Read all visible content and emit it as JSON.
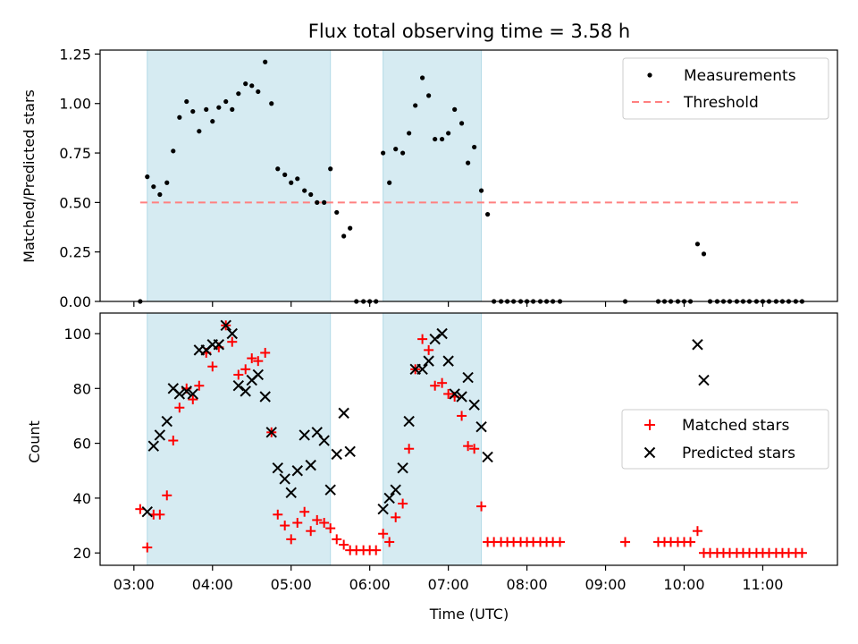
{
  "figure": {
    "title": "Flux total observing time = 3.58 h"
  },
  "chart_data": [
    {
      "type": "scatter",
      "panel": "top",
      "ylabel": "Matched/Predicted stars",
      "xlabel": "",
      "x_range_hours": [
        2.57,
        11.95
      ],
      "ylim": [
        0,
        1.27
      ],
      "yticks": [
        0,
        0.25,
        0.5,
        0.75,
        1.0,
        1.25
      ],
      "ytick_labels": [
        "0.00",
        "0.25",
        "0.50",
        "0.75",
        "1.00",
        "1.25"
      ],
      "xticks": [
        3,
        4,
        5,
        6,
        7,
        8,
        9,
        10,
        11
      ],
      "shaded_intervals_hours": [
        [
          3.17,
          5.5
        ],
        [
          6.17,
          7.42
        ]
      ],
      "legend_position": "upper right",
      "legend": [
        "Measurements",
        "Threshold"
      ],
      "threshold": {
        "name": "Threshold",
        "value": 0.5,
        "x_start": 3.08,
        "x_end": 11.5,
        "color": "#ff8080",
        "style": "dashed"
      },
      "series": [
        {
          "name": "Measurements",
          "marker": "dot",
          "color": "#000000",
          "points": [
            [
              3.08,
              0.0
            ],
            [
              3.17,
              0.63
            ],
            [
              3.25,
              0.58
            ],
            [
              3.33,
              0.54
            ],
            [
              3.42,
              0.6
            ],
            [
              3.5,
              0.76
            ],
            [
              3.58,
              0.93
            ],
            [
              3.67,
              1.01
            ],
            [
              3.75,
              0.96
            ],
            [
              3.83,
              0.86
            ],
            [
              3.92,
              0.97
            ],
            [
              4.0,
              0.91
            ],
            [
              4.08,
              0.98
            ],
            [
              4.17,
              1.01
            ],
            [
              4.25,
              0.97
            ],
            [
              4.33,
              1.05
            ],
            [
              4.42,
              1.1
            ],
            [
              4.5,
              1.09
            ],
            [
              4.58,
              1.06
            ],
            [
              4.67,
              1.21
            ],
            [
              4.75,
              1.0
            ],
            [
              4.83,
              0.67
            ],
            [
              4.92,
              0.64
            ],
            [
              5.0,
              0.6
            ],
            [
              5.08,
              0.62
            ],
            [
              5.17,
              0.56
            ],
            [
              5.25,
              0.54
            ],
            [
              5.33,
              0.5
            ],
            [
              5.42,
              0.5
            ],
            [
              5.5,
              0.67
            ],
            [
              5.58,
              0.45
            ],
            [
              5.67,
              0.33
            ],
            [
              5.75,
              0.37
            ],
            [
              5.83,
              0.0
            ],
            [
              5.92,
              0.0
            ],
            [
              6.0,
              0.0
            ],
            [
              6.08,
              0.0
            ],
            [
              6.17,
              0.75
            ],
            [
              6.25,
              0.6
            ],
            [
              6.33,
              0.77
            ],
            [
              6.42,
              0.75
            ],
            [
              6.5,
              0.85
            ],
            [
              6.58,
              0.99
            ],
            [
              6.67,
              1.13
            ],
            [
              6.75,
              1.04
            ],
            [
              6.83,
              0.82
            ],
            [
              6.92,
              0.82
            ],
            [
              7.0,
              0.85
            ],
            [
              7.08,
              0.97
            ],
            [
              7.17,
              0.9
            ],
            [
              7.25,
              0.7
            ],
            [
              7.33,
              0.78
            ],
            [
              7.42,
              0.56
            ],
            [
              7.5,
              0.44
            ],
            [
              7.58,
              0.0
            ],
            [
              7.67,
              0.0
            ],
            [
              7.75,
              0.0
            ],
            [
              7.83,
              0.0
            ],
            [
              7.92,
              0.0
            ],
            [
              8.0,
              0.0
            ],
            [
              8.08,
              0.0
            ],
            [
              8.17,
              0.0
            ],
            [
              8.25,
              0.0
            ],
            [
              8.33,
              0.0
            ],
            [
              8.42,
              0.0
            ],
            [
              9.25,
              0.0
            ],
            [
              9.67,
              0.0
            ],
            [
              9.75,
              0.0
            ],
            [
              9.83,
              0.0
            ],
            [
              9.92,
              0.0
            ],
            [
              10.0,
              0.0
            ],
            [
              10.08,
              0.0
            ],
            [
              10.17,
              0.29
            ],
            [
              10.25,
              0.24
            ],
            [
              10.33,
              0.0
            ],
            [
              10.42,
              0.0
            ],
            [
              10.5,
              0.0
            ],
            [
              10.58,
              0.0
            ],
            [
              10.67,
              0.0
            ],
            [
              10.75,
              0.0
            ],
            [
              10.83,
              0.0
            ],
            [
              10.92,
              0.0
            ],
            [
              11.0,
              0.0
            ],
            [
              11.08,
              0.0
            ],
            [
              11.17,
              0.0
            ],
            [
              11.25,
              0.0
            ],
            [
              11.33,
              0.0
            ],
            [
              11.42,
              0.0
            ],
            [
              11.5,
              0.0
            ]
          ]
        }
      ]
    },
    {
      "type": "scatter",
      "panel": "bottom",
      "ylabel": "Count",
      "xlabel": "Time (UTC)",
      "x_range_hours": [
        2.57,
        11.95
      ],
      "ylim": [
        15.5,
        107.5
      ],
      "yticks": [
        20,
        40,
        60,
        80,
        100
      ],
      "ytick_labels": [
        "20",
        "40",
        "60",
        "80",
        "100"
      ],
      "xticks": [
        3,
        4,
        5,
        6,
        7,
        8,
        9,
        10,
        11
      ],
      "xtick_labels": [
        "03:00",
        "04:00",
        "05:00",
        "06:00",
        "07:00",
        "08:00",
        "09:00",
        "10:00",
        "11:00"
      ],
      "shaded_intervals_hours": [
        [
          3.17,
          5.5
        ],
        [
          6.17,
          7.42
        ]
      ],
      "legend_position": "center right",
      "legend": [
        "Matched stars",
        "Predicted stars"
      ],
      "series": [
        {
          "name": "Matched stars",
          "marker": "plus",
          "color": "#ff0000",
          "points": [
            [
              3.08,
              36
            ],
            [
              3.17,
              22
            ],
            [
              3.25,
              34
            ],
            [
              3.33,
              34
            ],
            [
              3.42,
              41
            ],
            [
              3.5,
              61
            ],
            [
              3.58,
              73
            ],
            [
              3.67,
              80
            ],
            [
              3.75,
              76
            ],
            [
              3.83,
              81
            ],
            [
              3.92,
              93
            ],
            [
              4.0,
              88
            ],
            [
              4.08,
              95
            ],
            [
              4.17,
              103
            ],
            [
              4.25,
              97
            ],
            [
              4.33,
              85
            ],
            [
              4.42,
              87
            ],
            [
              4.5,
              91
            ],
            [
              4.58,
              90
            ],
            [
              4.67,
              93
            ],
            [
              4.75,
              64
            ],
            [
              4.83,
              34
            ],
            [
              4.92,
              30
            ],
            [
              5.0,
              25
            ],
            [
              5.08,
              31
            ],
            [
              5.17,
              35
            ],
            [
              5.25,
              28
            ],
            [
              5.33,
              32
            ],
            [
              5.42,
              31
            ],
            [
              5.5,
              29
            ],
            [
              5.58,
              25
            ],
            [
              5.67,
              23
            ],
            [
              5.75,
              21
            ],
            [
              5.83,
              21
            ],
            [
              5.92,
              21
            ],
            [
              6.0,
              21
            ],
            [
              6.08,
              21
            ],
            [
              6.17,
              27
            ],
            [
              6.25,
              24
            ],
            [
              6.33,
              33
            ],
            [
              6.42,
              38
            ],
            [
              6.5,
              58
            ],
            [
              6.58,
              87
            ],
            [
              6.67,
              98
            ],
            [
              6.75,
              94
            ],
            [
              6.83,
              81
            ],
            [
              6.92,
              82
            ],
            [
              7.0,
              78
            ],
            [
              7.08,
              77
            ],
            [
              7.17,
              70
            ],
            [
              7.25,
              59
            ],
            [
              7.33,
              58
            ],
            [
              7.42,
              37
            ],
            [
              7.5,
              24
            ],
            [
              7.58,
              24
            ],
            [
              7.67,
              24
            ],
            [
              7.75,
              24
            ],
            [
              7.83,
              24
            ],
            [
              7.92,
              24
            ],
            [
              8.0,
              24
            ],
            [
              8.08,
              24
            ],
            [
              8.17,
              24
            ],
            [
              8.25,
              24
            ],
            [
              8.33,
              24
            ],
            [
              8.42,
              24
            ],
            [
              9.25,
              24
            ],
            [
              9.67,
              24
            ],
            [
              9.75,
              24
            ],
            [
              9.83,
              24
            ],
            [
              9.92,
              24
            ],
            [
              10.0,
              24
            ],
            [
              10.08,
              24
            ],
            [
              10.17,
              28
            ],
            [
              10.25,
              20
            ],
            [
              10.33,
              20
            ],
            [
              10.42,
              20
            ],
            [
              10.5,
              20
            ],
            [
              10.58,
              20
            ],
            [
              10.67,
              20
            ],
            [
              10.75,
              20
            ],
            [
              10.83,
              20
            ],
            [
              10.92,
              20
            ],
            [
              11.0,
              20
            ],
            [
              11.08,
              20
            ],
            [
              11.17,
              20
            ],
            [
              11.25,
              20
            ],
            [
              11.33,
              20
            ],
            [
              11.42,
              20
            ],
            [
              11.5,
              20
            ]
          ]
        },
        {
          "name": "Predicted stars",
          "marker": "x",
          "color": "#000000",
          "points": [
            [
              3.17,
              35
            ],
            [
              3.25,
              59
            ],
            [
              3.33,
              63
            ],
            [
              3.42,
              68
            ],
            [
              3.5,
              80
            ],
            [
              3.58,
              78
            ],
            [
              3.67,
              79
            ],
            [
              3.75,
              78
            ],
            [
              3.83,
              94
            ],
            [
              3.92,
              94
            ],
            [
              4.0,
              96
            ],
            [
              4.08,
              96
            ],
            [
              4.17,
              103
            ],
            [
              4.25,
              100
            ],
            [
              4.33,
              81
            ],
            [
              4.42,
              79
            ],
            [
              4.5,
              83
            ],
            [
              4.58,
              85
            ],
            [
              4.67,
              77
            ],
            [
              4.75,
              64
            ],
            [
              4.83,
              51
            ],
            [
              4.92,
              47
            ],
            [
              5.0,
              42
            ],
            [
              5.08,
              50
            ],
            [
              5.17,
              63
            ],
            [
              5.25,
              52
            ],
            [
              5.33,
              64
            ],
            [
              5.42,
              61
            ],
            [
              5.5,
              43
            ],
            [
              5.58,
              56
            ],
            [
              5.67,
              71
            ],
            [
              5.75,
              57
            ],
            [
              6.17,
              36
            ],
            [
              6.25,
              40
            ],
            [
              6.33,
              43
            ],
            [
              6.42,
              51
            ],
            [
              6.5,
              68
            ],
            [
              6.58,
              87
            ],
            [
              6.67,
              87
            ],
            [
              6.75,
              90
            ],
            [
              6.83,
              98
            ],
            [
              6.92,
              100
            ],
            [
              7.0,
              90
            ],
            [
              7.08,
              78
            ],
            [
              7.17,
              77
            ],
            [
              7.25,
              84
            ],
            [
              7.33,
              74
            ],
            [
              7.42,
              66
            ],
            [
              7.5,
              55
            ],
            [
              10.17,
              96
            ],
            [
              10.25,
              83
            ]
          ]
        }
      ]
    }
  ],
  "colors": {
    "shade": "#add8e6",
    "shade_alpha": 0.5,
    "threshold": "#ff8080",
    "matched": "#ff0000",
    "predicted": "#000000",
    "measurement": "#000000"
  }
}
